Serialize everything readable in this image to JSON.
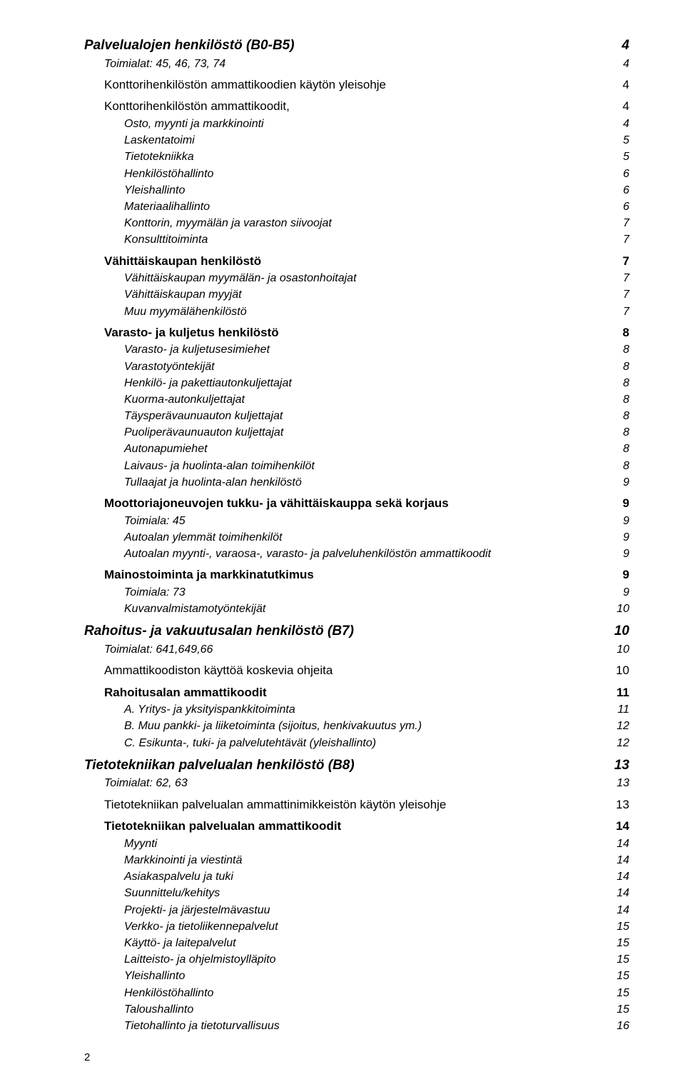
{
  "pageNumber": "2",
  "entries": [
    {
      "level": 0,
      "label": "Palvelualojen henkilöstö (B0-B5)",
      "page": "4",
      "bold": true,
      "italic": true,
      "size": "l"
    },
    {
      "level": 1,
      "label": "Toimialat: 45, 46, 73, 74",
      "page": "4",
      "italic": true,
      "size": "s"
    },
    {
      "gap": true
    },
    {
      "level": 1,
      "label": "Konttorihenkilöstön ammattikoodien käytön yleisohje",
      "page": "4",
      "size": "m"
    },
    {
      "gap": true
    },
    {
      "level": 1,
      "label": "Konttorihenkilöstön ammattikoodit,",
      "page": "4",
      "size": "m"
    },
    {
      "level": 2,
      "label": "Osto, myynti ja markkinointi",
      "page": "4",
      "italic": true,
      "size": "s"
    },
    {
      "level": 2,
      "label": "Laskentatoimi",
      "page": "5",
      "italic": true,
      "size": "s"
    },
    {
      "level": 2,
      "label": "Tietotekniikka",
      "page": "5",
      "italic": true,
      "size": "s"
    },
    {
      "level": 2,
      "label": "Henkilöstöhallinto",
      "page": "6",
      "italic": true,
      "size": "s"
    },
    {
      "level": 2,
      "label": "Yleishallinto",
      "page": "6",
      "italic": true,
      "size": "s"
    },
    {
      "level": 2,
      "label": "Materiaalihallinto",
      "page": "6",
      "italic": true,
      "size": "s"
    },
    {
      "level": 2,
      "label": "Konttorin, myymälän ja varaston siivoojat",
      "page": "7",
      "italic": true,
      "size": "s"
    },
    {
      "level": 2,
      "label": "Konsulttitoiminta",
      "page": "7",
      "italic": true,
      "size": "s"
    },
    {
      "gap": true
    },
    {
      "level": 1,
      "label": "Vähittäiskaupan henkilöstö",
      "page": "7",
      "bold": true,
      "size": "m"
    },
    {
      "level": 2,
      "label": "Vähittäiskaupan myymälän- ja osastonhoitajat",
      "page": "7",
      "italic": true,
      "size": "s"
    },
    {
      "level": 2,
      "label": "Vähittäiskaupan myyjät",
      "page": "7",
      "italic": true,
      "size": "s"
    },
    {
      "level": 2,
      "label": "Muu myymälähenkilöstö",
      "page": "7",
      "italic": true,
      "size": "s"
    },
    {
      "gap": true
    },
    {
      "level": 1,
      "label": "Varasto- ja kuljetus henkilöstö",
      "page": "8",
      "bold": true,
      "size": "m"
    },
    {
      "level": 2,
      "label": "Varasto- ja kuljetusesimiehet",
      "page": "8",
      "italic": true,
      "size": "s"
    },
    {
      "level": 2,
      "label": "Varastotyöntekijät",
      "page": "8",
      "italic": true,
      "size": "s"
    },
    {
      "level": 2,
      "label": "Henkilö- ja pakettiautonkuljettajat",
      "page": "8",
      "italic": true,
      "size": "s"
    },
    {
      "level": 2,
      "label": "Kuorma-autonkuljettajat",
      "page": "8",
      "italic": true,
      "size": "s"
    },
    {
      "level": 2,
      "label": "Täysperävaunuauton kuljettajat",
      "page": "8",
      "italic": true,
      "size": "s"
    },
    {
      "level": 2,
      "label": "Puoliperävaunuauton kuljettajat",
      "page": "8",
      "italic": true,
      "size": "s"
    },
    {
      "level": 2,
      "label": "Autonapumiehet",
      "page": "8",
      "italic": true,
      "size": "s"
    },
    {
      "level": 2,
      "label": "Laivaus- ja huolinta-alan toimihenkilöt",
      "page": "8",
      "italic": true,
      "size": "s"
    },
    {
      "level": 2,
      "label": "Tullaajat ja huolinta-alan henkilöstö",
      "page": "9",
      "italic": true,
      "size": "s"
    },
    {
      "gap": true
    },
    {
      "level": 1,
      "label": "Moottoriajoneuvojen tukku- ja vähittäiskauppa sekä korjaus",
      "page": "9",
      "bold": true,
      "size": "m"
    },
    {
      "level": 2,
      "label": "Toimiala: 45",
      "page": "9",
      "italic": true,
      "size": "s"
    },
    {
      "level": 2,
      "label": "Autoalan ylemmät toimihenkilöt",
      "page": "9",
      "italic": true,
      "size": "s"
    },
    {
      "level": 2,
      "label": "Autoalan myynti-, varaosa-, varasto- ja palveluhenkilöstön ammattikoodit",
      "page": "9",
      "italic": true,
      "size": "s"
    },
    {
      "gap": true
    },
    {
      "level": 1,
      "label": "Mainostoiminta ja markkinatutkimus",
      "page": "9",
      "bold": true,
      "size": "m"
    },
    {
      "level": 2,
      "label": "Toimiala: 73",
      "page": "9",
      "italic": true,
      "size": "s"
    },
    {
      "level": 2,
      "label": "Kuvanvalmistamotyöntekijät",
      "page": "10",
      "italic": true,
      "size": "s"
    },
    {
      "gap": true
    },
    {
      "level": 0,
      "label": "Rahoitus- ja vakuutusalan henkilöstö (B7)",
      "page": "10",
      "bold": true,
      "italic": true,
      "size": "l"
    },
    {
      "level": 1,
      "label": "Toimialat: 641,649,66",
      "page": "10",
      "italic": true,
      "size": "s"
    },
    {
      "gap": true
    },
    {
      "level": 1,
      "label": "Ammattikoodiston käyttöä koskevia ohjeita",
      "page": "10",
      "size": "m"
    },
    {
      "gap": true
    },
    {
      "level": 1,
      "label": "Rahoitusalan ammattikoodit",
      "page": "11",
      "bold": true,
      "size": "m"
    },
    {
      "level": 2,
      "label": "A. Yritys- ja yksityispankkitoiminta",
      "page": "11",
      "italic": true,
      "size": "s"
    },
    {
      "level": 2,
      "label": "B. Muu pankki- ja liiketoiminta (sijoitus, henkivakuutus ym.)",
      "page": "12",
      "italic": true,
      "size": "s"
    },
    {
      "level": 2,
      "label": "C. Esikunta-, tuki- ja palvelutehtävät (yleishallinto)",
      "page": "12",
      "italic": true,
      "size": "s"
    },
    {
      "gap": true
    },
    {
      "level": 0,
      "label": "Tietotekniikan palvelualan henkilöstö (B8)",
      "page": "13",
      "bold": true,
      "italic": true,
      "size": "l"
    },
    {
      "level": 1,
      "label": "Toimialat: 62, 63",
      "page": "13",
      "italic": true,
      "size": "s"
    },
    {
      "gap": true
    },
    {
      "level": 1,
      "label": "Tietotekniikan palvelualan ammattinimikkeistön käytön yleisohje",
      "page": "13",
      "size": "m"
    },
    {
      "gap": true
    },
    {
      "level": 1,
      "label": "Tietotekniikan palvelualan ammattikoodit",
      "page": "14",
      "bold": true,
      "size": "m"
    },
    {
      "level": 2,
      "label": "Myynti",
      "page": "14",
      "italic": true,
      "size": "s"
    },
    {
      "level": 2,
      "label": "Markkinointi ja viestintä",
      "page": "14",
      "italic": true,
      "size": "s"
    },
    {
      "level": 2,
      "label": "Asiakaspalvelu ja tuki",
      "page": "14",
      "italic": true,
      "size": "s"
    },
    {
      "level": 2,
      "label": "Suunnittelu/kehitys",
      "page": "14",
      "italic": true,
      "size": "s"
    },
    {
      "level": 2,
      "label": "Projekti- ja järjestelmävastuu",
      "page": "14",
      "italic": true,
      "size": "s"
    },
    {
      "level": 2,
      "label": "Verkko- ja tietoliikennepalvelut",
      "page": "15",
      "italic": true,
      "size": "s"
    },
    {
      "level": 2,
      "label": "Käyttö- ja laitepalvelut",
      "page": "15",
      "italic": true,
      "size": "s"
    },
    {
      "level": 2,
      "label": "Laitteisto- ja ohjelmistoylläpito",
      "page": "15",
      "italic": true,
      "size": "s"
    },
    {
      "level": 2,
      "label": "Yleishallinto",
      "page": "15",
      "italic": true,
      "size": "s"
    },
    {
      "level": 2,
      "label": "Henkilöstöhallinto",
      "page": "15",
      "italic": true,
      "size": "s"
    },
    {
      "level": 2,
      "label": "Taloushallinto",
      "page": "15",
      "italic": true,
      "size": "s"
    },
    {
      "level": 2,
      "label": "Tietohallinto ja tietoturvallisuus",
      "page": "16",
      "italic": true,
      "size": "s"
    }
  ]
}
